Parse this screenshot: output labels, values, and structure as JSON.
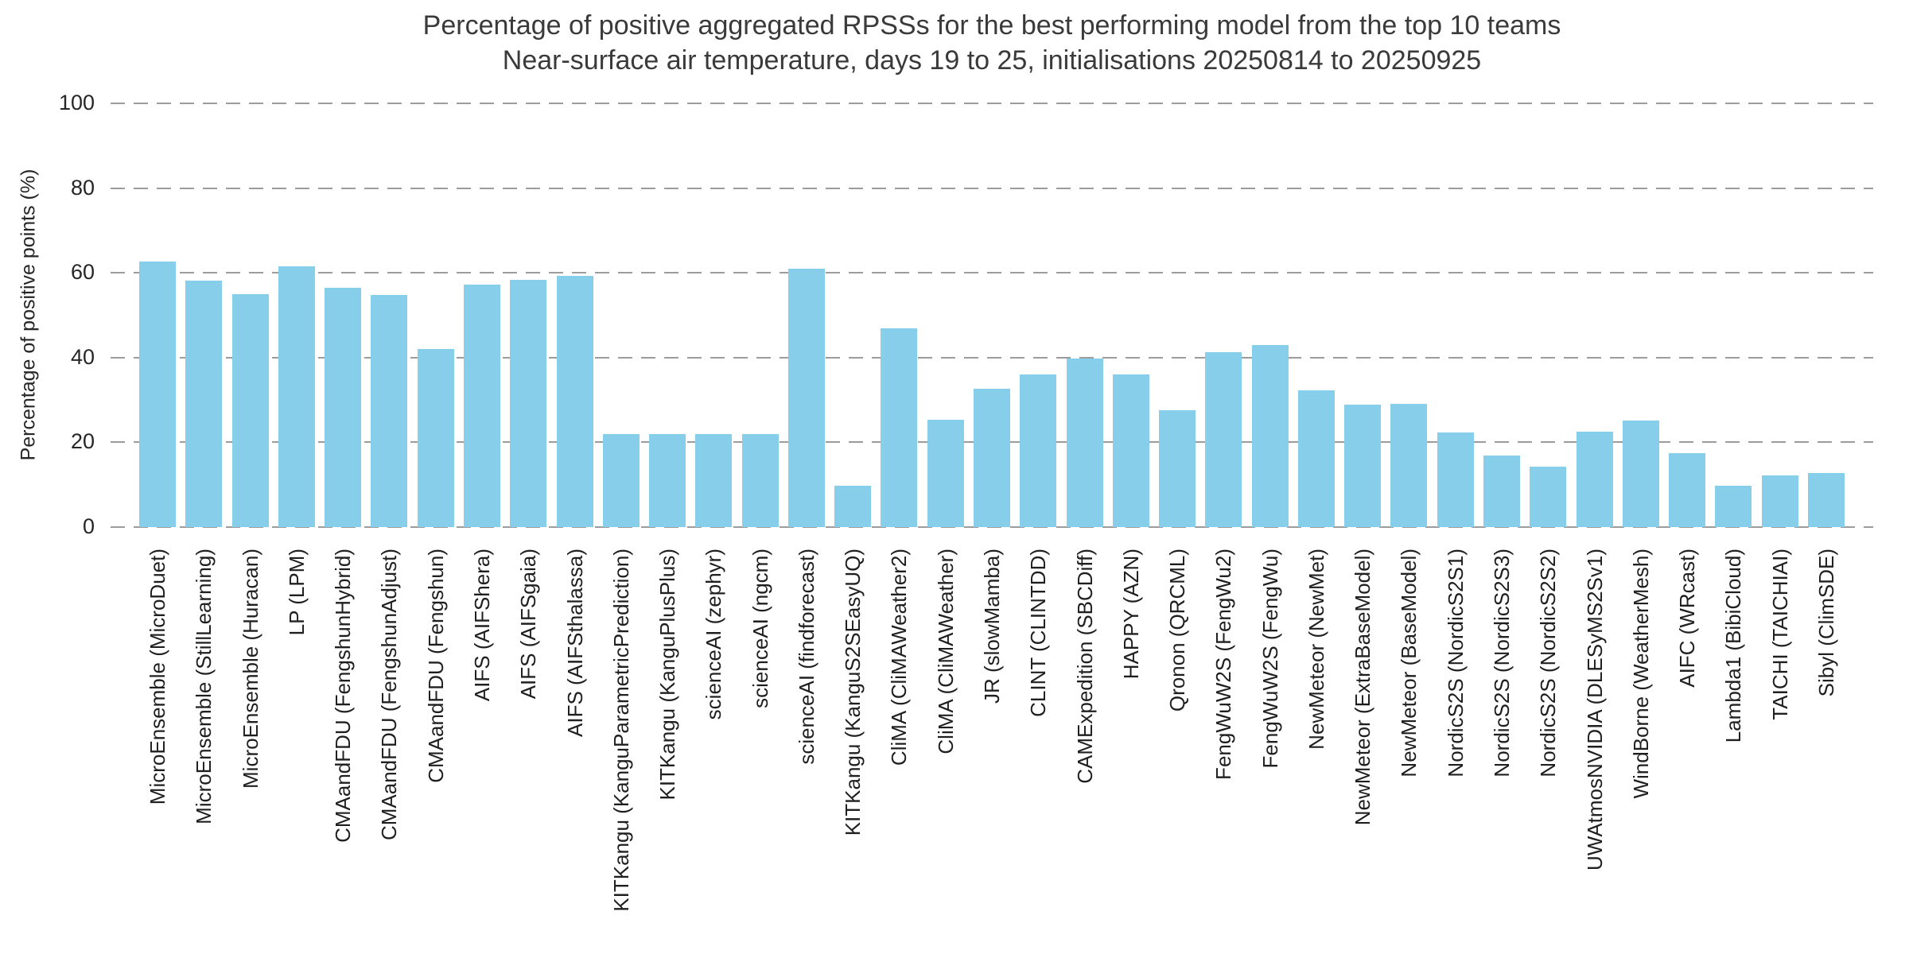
{
  "chart_data": {
    "type": "bar",
    "title": "Percentage of positive aggregated RPSSs for the best performing model from the top 10 teams",
    "subtitle": "Near-surface air temperature, days 19 to 25, initialisations 20250814 to 20250925",
    "ylabel": "Percentage of positive points (%)",
    "xlabel": "",
    "ylim": [
      0,
      100
    ],
    "yticks": [
      0,
      20,
      40,
      60,
      80,
      100
    ],
    "grid": "horizontal-dashed",
    "legend": "none",
    "bar_color": "#87CEEB",
    "grid_color": "#9c9c9c",
    "title_color": "#3a3a3a",
    "categories": [
      "MicroEnsemble (MicroDuet)",
      "MicroEnsemble (StillLearning)",
      "MicroEnsemble (Huracan)",
      "LP (LPM)",
      "CMAandFDU (FengshunHybrid)",
      "CMAandFDU (FengshunAdjust)",
      "CMAandFDU (Fengshun)",
      "AIFS (AIFShera)",
      "AIFS (AIFSgaia)",
      "AIFS (AIFSthalassa)",
      "KITKangu (KanguParametricPrediction)",
      "KITKangu (KanguPlusPlus)",
      "scienceAI (zephyr)",
      "scienceAI (ngcm)",
      "scienceAI (findforecast)",
      "KITKangu (KanguS2SEasyUQ)",
      "CliMA (CliMAWeather2)",
      "CliMA (CliMAWeather)",
      "JR (slowMamba)",
      "CLINT (CLINTDD)",
      "CAMExpedition (SBCDiff)",
      "HAPPY (AZN)",
      "Qronon (QRCML)",
      "FengWuW2S (FengWu2)",
      "FengWuW2S (FengWu)",
      "NewMeteor (NewMet)",
      "NewMeteor (ExtraBaseModel)",
      "NewMeteor (BaseModel)",
      "NordicS2S (NordicS2S1)",
      "NordicS2S (NordicS2S3)",
      "NordicS2S (NordicS2S2)",
      "UWAtmosNVIDIA (DLESyMS2Sv1)",
      "WindBorne (WeatherMesh)",
      "AIFC (WRcast)",
      "Lambda1 (BibiCloud)",
      "TAICHI (TAICHIAI)",
      "Sibyl (ClimSDE)"
    ],
    "values": [
      62.6,
      58.2,
      55.0,
      61.6,
      56.5,
      54.8,
      42.0,
      57.2,
      58.4,
      59.2,
      21.9,
      21.9,
      21.9,
      22.0,
      61.0,
      9.8,
      47.0,
      25.4,
      32.6,
      36.1,
      39.8,
      36.0,
      27.6,
      41.2,
      43.0,
      32.3,
      28.9,
      29.0,
      22.3,
      16.8,
      14.3,
      22.6,
      25.2,
      17.5,
      9.8,
      12.2,
      12.8
    ]
  }
}
